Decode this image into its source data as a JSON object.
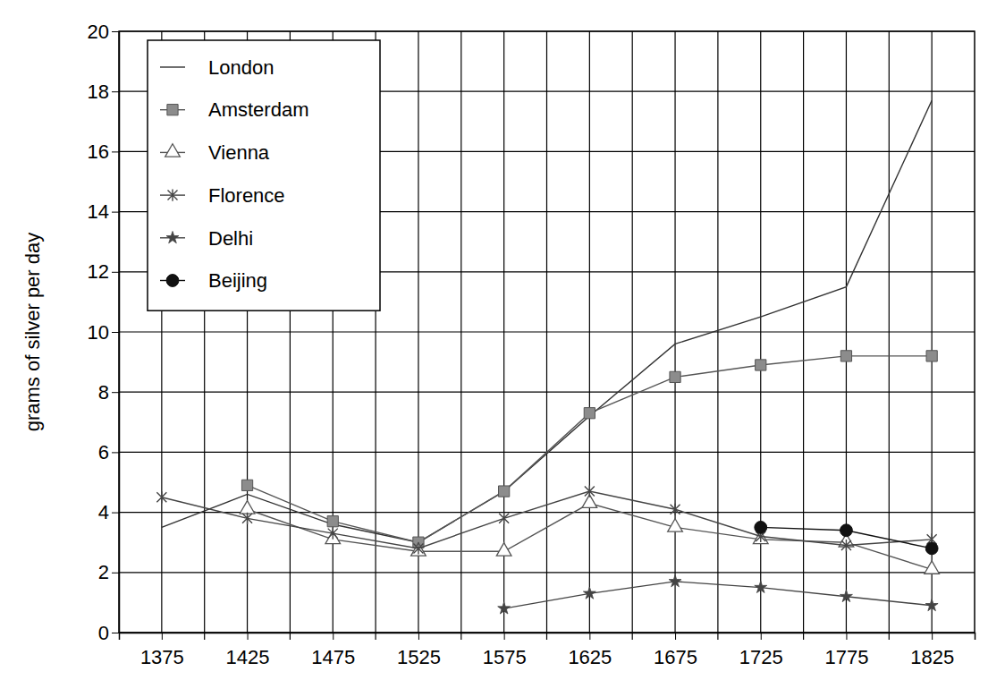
{
  "chart_data": {
    "type": "line",
    "y_label": "grams of silver per day",
    "x": [
      1375,
      1425,
      1475,
      1525,
      1575,
      1625,
      1675,
      1725,
      1775,
      1825
    ],
    "xlim": [
      1350,
      1850
    ],
    "xticks": [
      1375,
      1425,
      1475,
      1525,
      1575,
      1625,
      1675,
      1725,
      1775,
      1825
    ],
    "ylim": [
      0,
      20
    ],
    "yticks": [
      0,
      2,
      4,
      6,
      8,
      10,
      12,
      14,
      16,
      18,
      20
    ],
    "grid": true,
    "legend": "upper left",
    "series": [
      {
        "name": "London",
        "color": "#333333",
        "marker": "none",
        "line_style": "solid",
        "values": [
          3.5,
          4.6,
          3.6,
          3.0,
          4.7,
          7.2,
          9.6,
          10.5,
          11.5,
          17.7
        ]
      },
      {
        "name": "Amsterdam",
        "color": "#8c8c8c",
        "marker": "square",
        "line_style": "solid",
        "values": [
          null,
          4.9,
          3.7,
          3.0,
          4.7,
          7.3,
          8.5,
          8.9,
          9.2,
          9.2
        ]
      },
      {
        "name": "Vienna",
        "color": "#555555",
        "marker": "triangle",
        "line_style": "solid",
        "values": [
          null,
          4.1,
          3.1,
          2.7,
          2.7,
          4.3,
          3.5,
          3.1,
          3.0,
          2.1
        ]
      },
      {
        "name": "Florence",
        "color": "#444444",
        "marker": "x",
        "line_style": "solid",
        "values": [
          4.5,
          3.8,
          3.3,
          2.8,
          3.8,
          4.7,
          4.1,
          3.2,
          2.9,
          3.1
        ]
      },
      {
        "name": "Delhi",
        "color": "#444444",
        "marker": "star",
        "line_style": "solid",
        "values": [
          null,
          null,
          null,
          null,
          0.8,
          1.3,
          1.7,
          1.5,
          1.2,
          0.9
        ]
      },
      {
        "name": "Beijing",
        "color": "#111111",
        "marker": "circle",
        "line_style": "solid",
        "values": [
          null,
          null,
          null,
          null,
          null,
          null,
          null,
          3.5,
          3.4,
          2.8
        ]
      }
    ]
  }
}
